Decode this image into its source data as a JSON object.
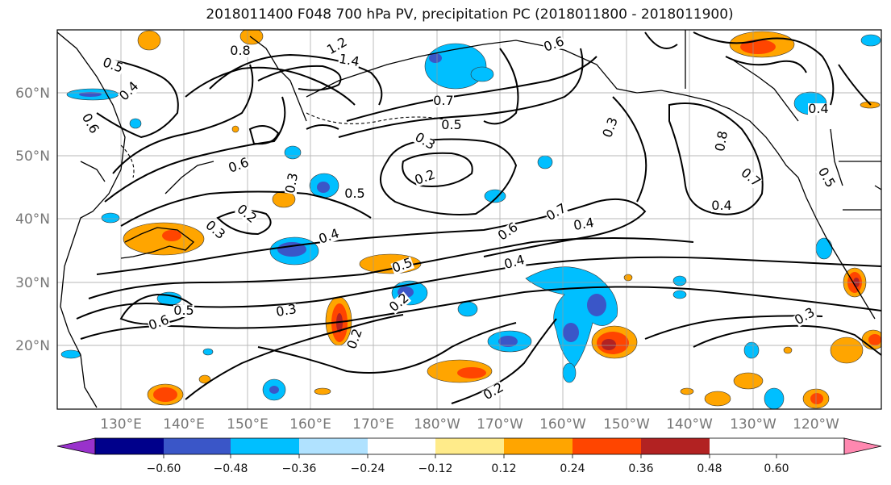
{
  "title": "2018011400 F048 700 hPa PV, precipitation PC (2018011800 - 2018011900)",
  "map": {
    "lat_labels": [
      "60°N",
      "50°N",
      "40°N",
      "30°N",
      "20°N"
    ],
    "lon_labels": [
      "130°E",
      "140°E",
      "150°E",
      "160°E",
      "170°E",
      "180°W",
      "170°W",
      "160°W",
      "150°W",
      "140°W",
      "130°W",
      "120°W"
    ],
    "gridlines": true
  },
  "colorbar": {
    "ticks": [
      "−0.60",
      "−0.48",
      "−0.36",
      "−0.24",
      "−0.12",
      "0.12",
      "0.24",
      "0.36",
      "0.48",
      "0.60"
    ],
    "colors": [
      "#9932cc",
      "#00008b",
      "#3a56c8",
      "#00bfff",
      "#b0e2ff",
      "#ffffff",
      "#ffeb8a",
      "#ffa500",
      "#ff4500",
      "#b22222",
      "#ff88b0"
    ]
  },
  "contour_labels": [
    "0.5",
    "0.4",
    "0.6",
    "0.8",
    "1.2",
    "1.4",
    "0.7",
    "0.5",
    "0.3",
    "0.2",
    "0.6",
    "0.5",
    "0.3",
    "0.4",
    "0.6",
    "0.7",
    "0.4",
    "0.3",
    "0.2",
    "0.5",
    "0.3",
    "0.2",
    "0.8",
    "0.7",
    "0.4",
    "0.5",
    "0.3",
    "0.2",
    "0.2",
    "0.4",
    "0.5",
    "0.6",
    "0.3",
    "0.6",
    "0.4"
  ]
}
